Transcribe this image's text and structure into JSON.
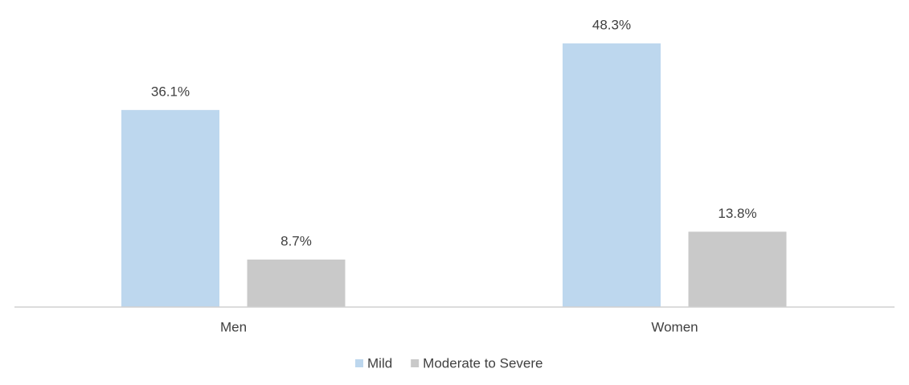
{
  "chart_data": {
    "type": "bar",
    "categories": [
      "Men",
      "Women"
    ],
    "series": [
      {
        "name": "Mild",
        "color": "#bdd7ee",
        "values": [
          36.1,
          48.3
        ],
        "value_labels": [
          "36.1%",
          "48.3%"
        ]
      },
      {
        "name": "Moderate to Severe",
        "color": "#c9c9c9",
        "values": [
          8.7,
          13.8
        ],
        "value_labels": [
          "8.7%",
          "13.8%"
        ]
      }
    ]
  }
}
